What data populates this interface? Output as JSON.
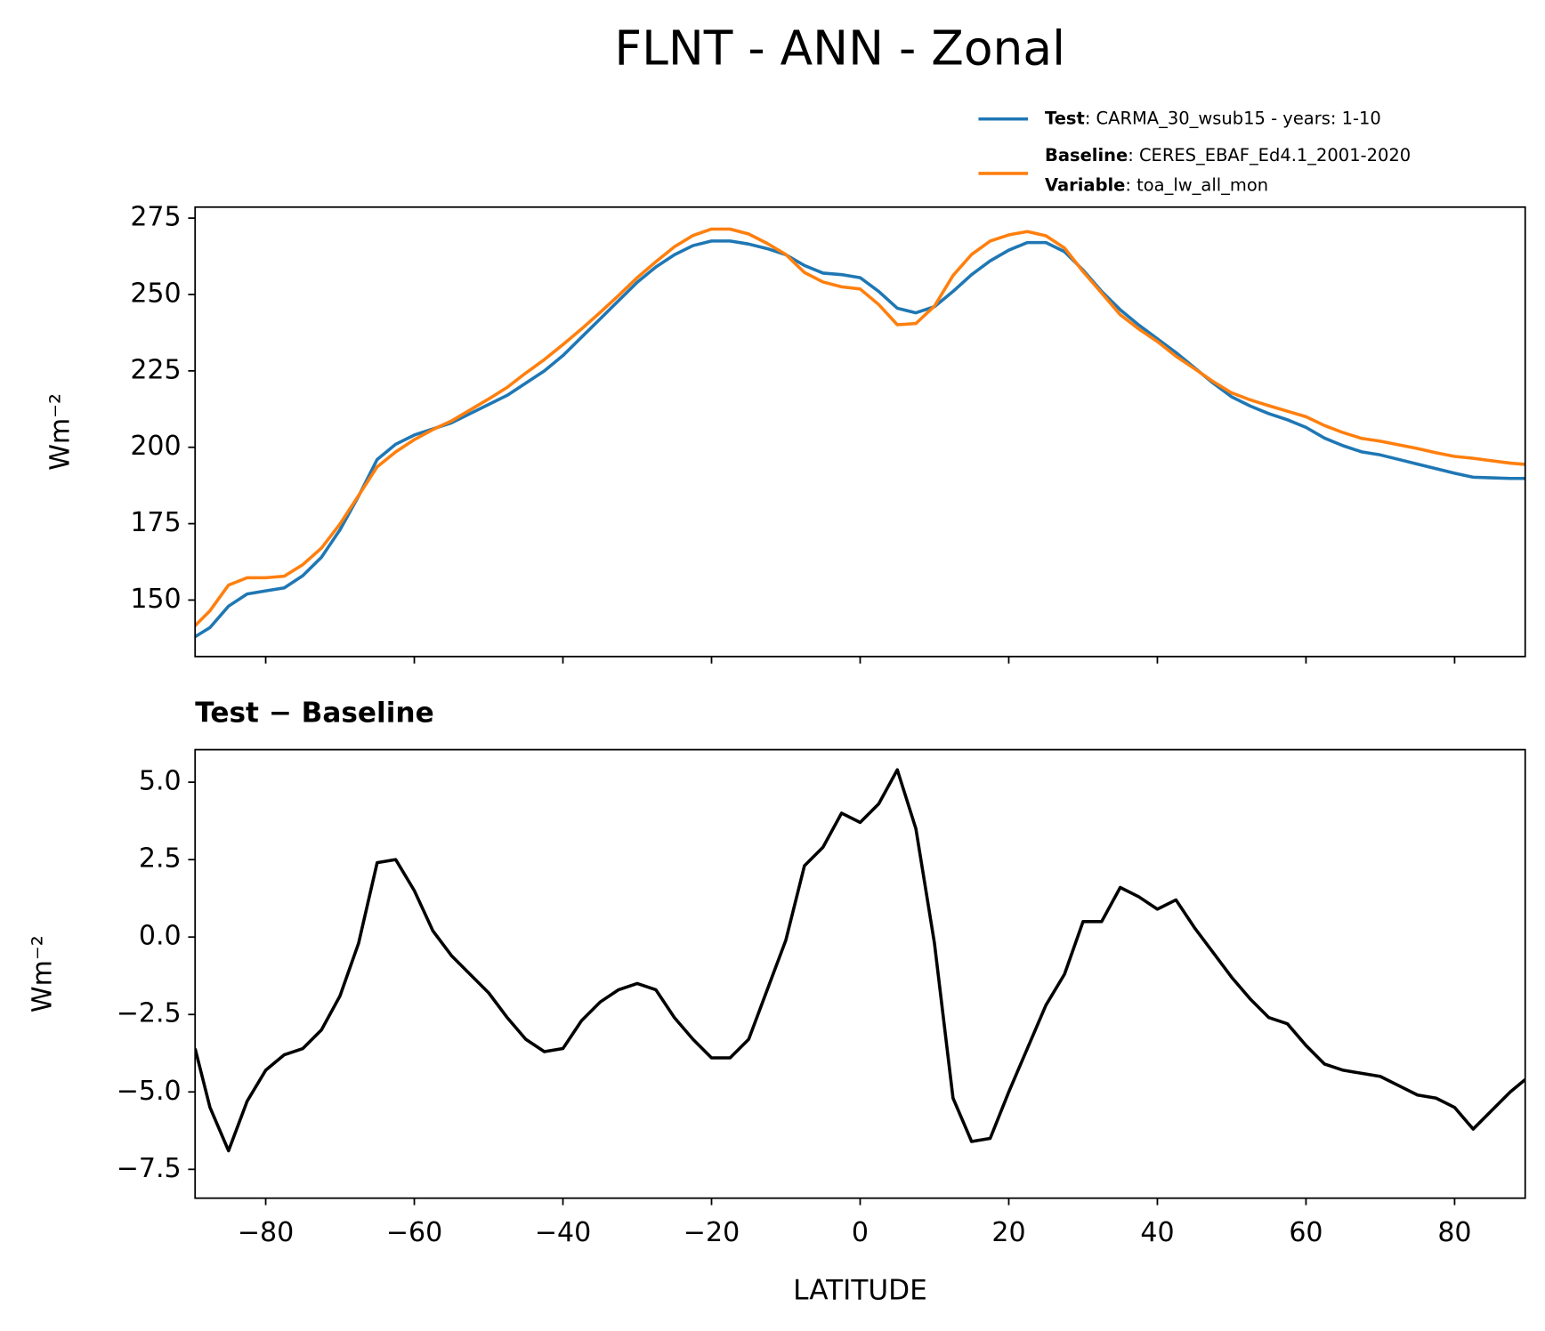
{
  "title": "FLNT - ANN - Zonal",
  "chart_data": [
    {
      "type": "line",
      "ylabel": "Wm⁻²",
      "x": [
        -89.5,
        -87.5,
        -85,
        -82.5,
        -80,
        -77.5,
        -75,
        -72.5,
        -70,
        -67.5,
        -65,
        -62.5,
        -60,
        -57.5,
        -55,
        -52.5,
        -50,
        -47.5,
        -45,
        -42.5,
        -40,
        -37.5,
        -35,
        -32.5,
        -30,
        -27.5,
        -25,
        -22.5,
        -20,
        -17.5,
        -15,
        -12.5,
        -10,
        -7.5,
        -5,
        -2.5,
        0,
        2.5,
        5,
        7.5,
        10,
        12.5,
        15,
        17.5,
        20,
        22.5,
        25,
        27.5,
        30,
        32.5,
        35,
        37.5,
        40,
        42.5,
        45,
        47.5,
        50,
        52.5,
        55,
        57.5,
        60,
        62.5,
        65,
        67.5,
        70,
        72.5,
        75,
        77.5,
        80,
        82.5,
        85,
        87.5,
        89.5
      ],
      "series": [
        {
          "name": "Test",
          "description": ": CARMA_30_wsub15 - years: 1-10",
          "color": "#1f77b4",
          "values": [
            138,
            141,
            148,
            152,
            153,
            154,
            158,
            164,
            173,
            184,
            196,
            201,
            204,
            206,
            208,
            211,
            214,
            217,
            221,
            225,
            230,
            236,
            242,
            248,
            254,
            259,
            263,
            266,
            267.5,
            267.5,
            266.5,
            265,
            263,
            259.5,
            257,
            256.5,
            255.5,
            251,
            245.5,
            244,
            246,
            251,
            256.5,
            261,
            264.5,
            267,
            267,
            264,
            258,
            251,
            245,
            240,
            235.5,
            231,
            226,
            221,
            216.5,
            213.5,
            211,
            209,
            206.5,
            203,
            200.5,
            198.5,
            197.5,
            196,
            194.5,
            193,
            191.5,
            190.2,
            190,
            189.8,
            189.8
          ]
        },
        {
          "name": "Baseline",
          "description": ": CERES_EBAF_Ed4.1_2001-2020",
          "color": "#ff7f0e",
          "values": [
            141.6,
            146.5,
            154.9,
            157.3,
            157.3,
            157.8,
            161.6,
            167,
            174.9,
            184.2,
            193.6,
            198.5,
            202.5,
            205.8,
            208.6,
            212.2,
            215.8,
            219.6,
            224.3,
            228.7,
            233.6,
            238.7,
            244.1,
            249.7,
            255.5,
            260.7,
            265.6,
            269.3,
            271.4,
            271.4,
            269.8,
            266.7,
            263.1,
            257.2,
            254.1,
            252.5,
            251.8,
            246.7,
            240.1,
            240.5,
            246.2,
            256.2,
            263.1,
            267.5,
            269.5,
            270.6,
            269.2,
            265.2,
            257.5,
            250.5,
            243.4,
            238.7,
            234.6,
            229.8,
            225.7,
            221.5,
            217.8,
            215.5,
            213.6,
            211.8,
            210,
            207.1,
            204.8,
            202.9,
            202,
            200.8,
            199.6,
            198.2,
            197,
            196.4,
            195.6,
            194.8,
            194.4
          ]
        }
      ],
      "legend_note": {
        "name": "Variable",
        "description": ": toa_lw_all_mon"
      },
      "xlim": [
        -89.5,
        89.5
      ],
      "xticks": [
        -80,
        -60,
        -40,
        -20,
        0,
        20,
        40,
        60,
        80
      ],
      "xticklabels": false,
      "ylim": [
        131.5,
        278.6
      ],
      "yticks": [
        150,
        175,
        200,
        225,
        250,
        275
      ],
      "legend": "upper right"
    },
    {
      "type": "line",
      "title": "Test − Baseline",
      "xlabel": "LATITUDE",
      "ylabel": "Wm⁻²",
      "x": [
        -89.5,
        -87.5,
        -85,
        -82.5,
        -80,
        -77.5,
        -75,
        -72.5,
        -70,
        -67.5,
        -65,
        -62.5,
        -60,
        -57.5,
        -55,
        -52.5,
        -50,
        -47.5,
        -45,
        -42.5,
        -40,
        -37.5,
        -35,
        -32.5,
        -30,
        -27.5,
        -25,
        -22.5,
        -20,
        -17.5,
        -15,
        -12.5,
        -10,
        -7.5,
        -5,
        -2.5,
        0,
        2.5,
        5,
        7.5,
        10,
        12.5,
        15,
        17.5,
        20,
        22.5,
        25,
        27.5,
        30,
        32.5,
        35,
        37.5,
        40,
        42.5,
        45,
        47.5,
        50,
        52.5,
        55,
        57.5,
        60,
        62.5,
        65,
        67.5,
        70,
        72.5,
        75,
        77.5,
        80,
        82.5,
        85,
        87.5,
        89.5
      ],
      "series": [
        {
          "color": "#000000",
          "values": [
            -3.6,
            -5.5,
            -6.9,
            -5.3,
            -4.3,
            -3.8,
            -3.6,
            -3.0,
            -1.9,
            -0.2,
            2.4,
            2.5,
            1.5,
            0.2,
            -0.6,
            -1.2,
            -1.8,
            -2.6,
            -3.3,
            -3.7,
            -3.6,
            -2.7,
            -2.1,
            -1.7,
            -1.5,
            -1.7,
            -2.6,
            -3.3,
            -3.9,
            -3.9,
            -3.3,
            -1.7,
            -0.1,
            2.3,
            2.9,
            4.0,
            3.7,
            4.3,
            5.4,
            3.5,
            -0.2,
            -5.2,
            -6.6,
            -6.5,
            -5.0,
            -3.6,
            -2.2,
            -1.2,
            0.5,
            0.5,
            1.6,
            1.3,
            0.9,
            1.2,
            0.3,
            -0.5,
            -1.3,
            -2.0,
            -2.6,
            -2.8,
            -3.5,
            -4.1,
            -4.3,
            -4.4,
            -4.5,
            -4.8,
            -5.1,
            -5.2,
            -5.5,
            -6.2,
            -5.6,
            -5.0,
            -4.6
          ]
        }
      ],
      "xlim": [
        -89.5,
        89.5
      ],
      "xticks": [
        {
          "value": -80,
          "label": "−80"
        },
        {
          "value": -60,
          "label": "−60"
        },
        {
          "value": -40,
          "label": "−40"
        },
        {
          "value": -20,
          "label": "−20"
        },
        0,
        20,
        40,
        60,
        80
      ],
      "ylim": [
        -8.43,
        6.05
      ],
      "yticks": [
        {
          "value": 5,
          "label": "5.0"
        },
        {
          "value": 2.5,
          "label": "2.5"
        },
        {
          "value": 0,
          "label": "0.0"
        },
        {
          "value": -2.5,
          "label": "−2.5"
        },
        {
          "value": -5,
          "label": "−5.0"
        },
        {
          "value": -7.5,
          "label": "−7.5"
        }
      ]
    }
  ]
}
